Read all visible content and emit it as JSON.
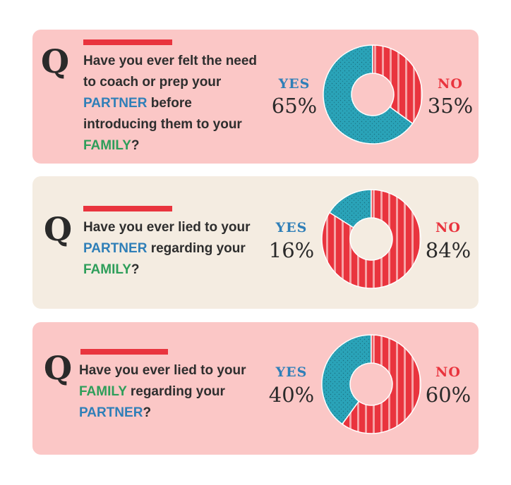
{
  "q_mark": "Q",
  "colors": {
    "yes": "#2aa3b8",
    "no": "#e9343e",
    "blue_text": "#2f7fb8",
    "green_text": "#2e9e5a"
  },
  "questions": [
    {
      "segments": [
        {
          "text": "Have you ever felt the need to coach or prep your ",
          "style": "plain"
        },
        {
          "text": "PARTNER",
          "style": "blue"
        },
        {
          "text": " before introducing them to your ",
          "style": "plain"
        },
        {
          "text": "FAMILY",
          "style": "green"
        },
        {
          "text": "?",
          "style": "plain"
        }
      ],
      "yes_label": "YES",
      "yes_pct": "65%",
      "no_label": "NO",
      "no_pct": "35%"
    },
    {
      "segments": [
        {
          "text": "Have you ever lied to your ",
          "style": "plain"
        },
        {
          "text": "PARTNER",
          "style": "blue"
        },
        {
          "text": " regarding your ",
          "style": "plain"
        },
        {
          "text": "FAMILY",
          "style": "green"
        },
        {
          "text": "?",
          "style": "plain"
        }
      ],
      "yes_label": "YES",
      "yes_pct": "16%",
      "no_label": "NO",
      "no_pct": "84%"
    },
    {
      "segments": [
        {
          "text": "Have you ever lied to your ",
          "style": "plain"
        },
        {
          "text": "FAMILY",
          "style": "green"
        },
        {
          "text": " regarding your ",
          "style": "plain"
        },
        {
          "text": "PARTNER",
          "style": "blue"
        },
        {
          "text": "?",
          "style": "plain"
        }
      ],
      "yes_label": "YES",
      "yes_pct": "40%",
      "no_label": "NO",
      "no_pct": "60%"
    }
  ],
  "chart_data": [
    {
      "type": "pie",
      "categories": [
        "YES",
        "NO"
      ],
      "values": [
        65,
        35
      ]
    },
    {
      "type": "pie",
      "categories": [
        "YES",
        "NO"
      ],
      "values": [
        16,
        84
      ]
    },
    {
      "type": "pie",
      "categories": [
        "YES",
        "NO"
      ],
      "values": [
        40,
        60
      ]
    }
  ]
}
